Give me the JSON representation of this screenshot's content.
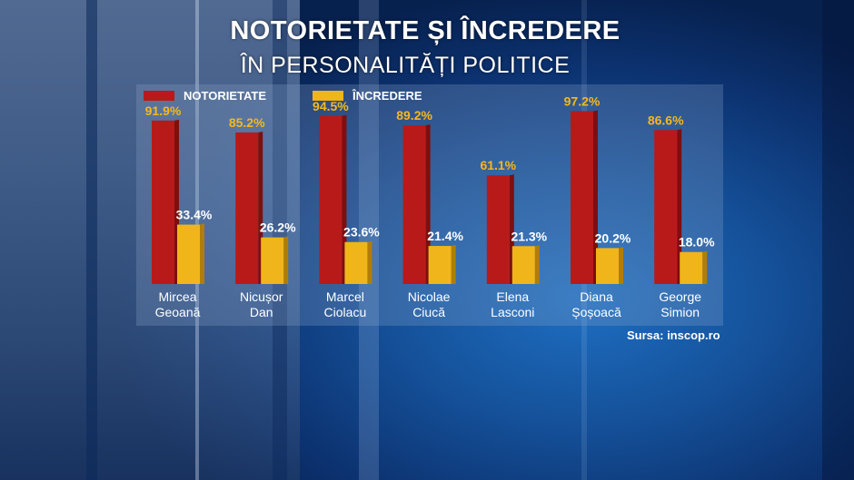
{
  "title": "NOTORIETATE ȘI ÎNCREDERE",
  "subtitle": "ÎN PERSONALITĂȚI POLITICE",
  "source": "Sursa: inscop.ro",
  "colors": {
    "notorietate": "#b81a1a",
    "incredere": "#f0b51a",
    "value_notorietate": "#f5b81e",
    "value_incredere": "#ffffff"
  },
  "chart_data": {
    "type": "bar",
    "categories": [
      [
        "Mircea",
        "Geoană"
      ],
      [
        "Nicușor",
        "Dan"
      ],
      [
        "Marcel",
        "Ciolacu"
      ],
      [
        "Nicolae",
        "Ciucă"
      ],
      [
        "Elena",
        "Lasconi"
      ],
      [
        "Diana",
        "Șoșoacă"
      ],
      [
        "George",
        "Simion"
      ]
    ],
    "series": [
      {
        "name": "NOTORIETATE",
        "values": [
          91.9,
          85.2,
          94.5,
          89.2,
          61.1,
          97.2,
          86.6
        ],
        "labels": [
          "91.9%",
          "85.2%",
          "94.5%",
          "89.2%",
          "61.1%",
          "97.2%",
          "86.6%"
        ]
      },
      {
        "name": "ÎNCREDERE",
        "values": [
          33.4,
          26.2,
          23.6,
          21.4,
          21.3,
          20.2,
          18.0
        ],
        "labels": [
          "33.4%",
          "26.2%",
          "23.6%",
          "21.4%",
          "21.3%",
          "20.2%",
          "18.0%"
        ]
      }
    ],
    "ylim": [
      0,
      100
    ]
  }
}
